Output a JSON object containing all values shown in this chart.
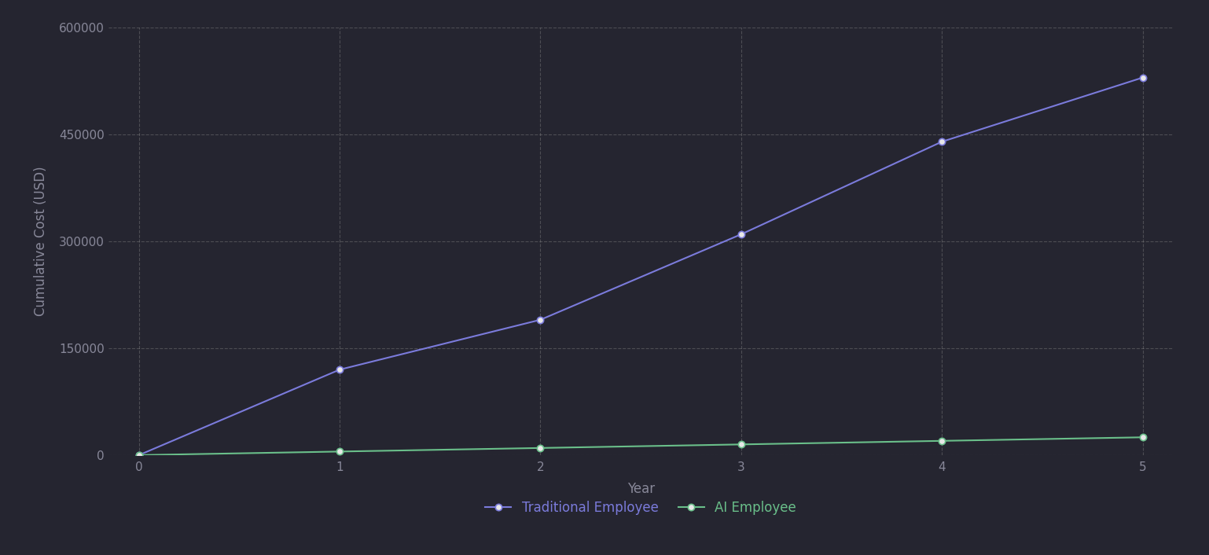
{
  "years": [
    0,
    1,
    2,
    3,
    4,
    5
  ],
  "traditional_costs": [
    0,
    120000,
    190000,
    310000,
    440000,
    530000
  ],
  "ai_costs": [
    0,
    5000,
    10000,
    15000,
    20000,
    25000
  ],
  "traditional_color": "#7b7bdb",
  "ai_color": "#6abf8a",
  "marker_facecolor": "#e8e8e8",
  "background_color": "#252530",
  "plot_bg_color": "#252530",
  "grid_color": "#aaaaaa",
  "text_color": "#888899",
  "xlabel": "Year",
  "ylabel": "Cumulative Cost (USD)",
  "legend_traditional": "Traditional Employee",
  "legend_ai": "AI Employee",
  "ylim": [
    0,
    600000
  ],
  "xlim": [
    -0.15,
    5.15
  ],
  "yticks": [
    0,
    150000,
    300000,
    450000,
    600000
  ],
  "xticks": [
    0,
    1,
    2,
    3,
    4,
    5
  ],
  "label_fontsize": 12,
  "tick_fontsize": 11,
  "legend_fontsize": 12,
  "line_width": 1.5,
  "marker_size": 6
}
